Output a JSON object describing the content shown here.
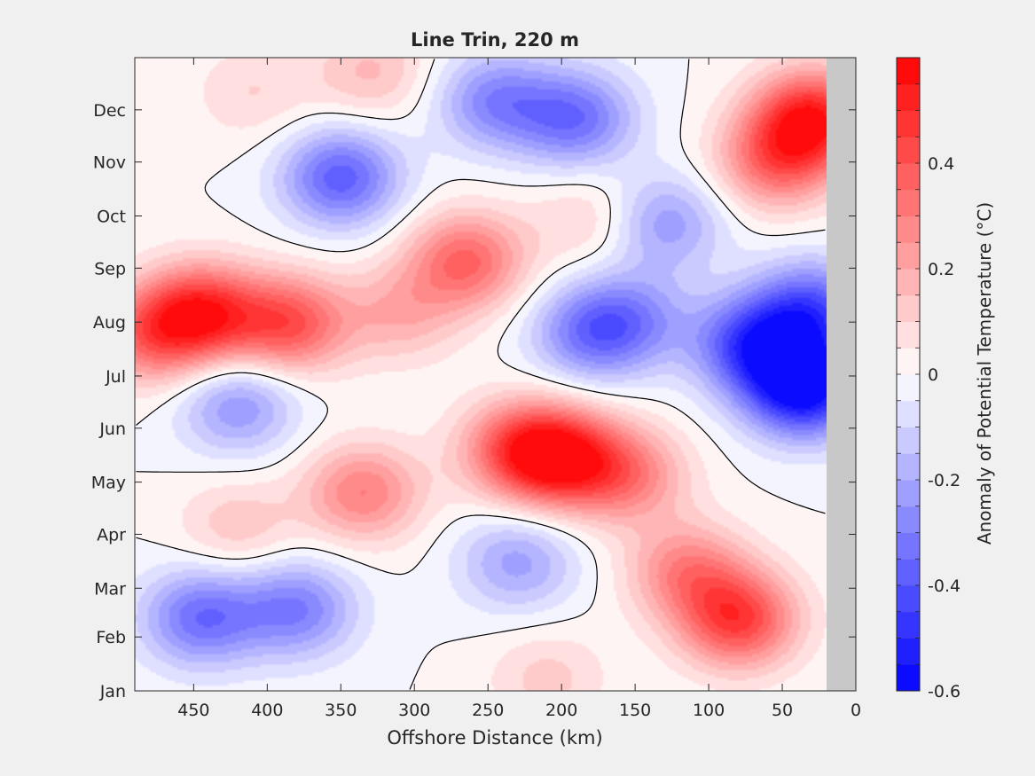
{
  "chart_data": {
    "type": "heatmap",
    "title": "Line Trin, 220 m",
    "xlabel": "Offshore Distance (km)",
    "ylabel": "",
    "colorbar_label": "Anomaly of Potential Temperature (°C)",
    "x_reversed": true,
    "xlim": [
      0,
      490
    ],
    "x_ticks": [
      450,
      400,
      350,
      300,
      250,
      200,
      150,
      100,
      50,
      0
    ],
    "y_ticks": [
      "Jan",
      "Feb",
      "Mar",
      "Apr",
      "May",
      "Jun",
      "Jul",
      "Aug",
      "Sep",
      "Oct",
      "Nov",
      "Dec"
    ],
    "y_tick_days": [
      1,
      32,
      60,
      91,
      121,
      152,
      182,
      213,
      244,
      274,
      305,
      335
    ],
    "ylim_days": [
      1,
      365
    ],
    "data_x_range": [
      20,
      490
    ],
    "no_data_color": "#c8c8c8",
    "clim": [
      -0.6,
      0.6
    ],
    "level_step": 0.05,
    "colorbar_ticks": [
      -0.6,
      -0.4,
      -0.2,
      0,
      0.2,
      0.4
    ],
    "colormap": {
      "negative_end": "#0000ff",
      "zero": "#ffffff",
      "positive_end": "#ff0000"
    },
    "zero_contour": true,
    "features": [
      {
        "x": 445,
        "day": 218,
        "value": 0.48
      },
      {
        "x": 385,
        "day": 212,
        "value": 0.4
      },
      {
        "x": 480,
        "day": 205,
        "value": 0.3
      },
      {
        "x": 200,
        "day": 135,
        "value": 0.48
      },
      {
        "x": 230,
        "day": 140,
        "value": 0.34
      },
      {
        "x": 155,
        "day": 125,
        "value": 0.28
      },
      {
        "x": 80,
        "day": 42,
        "value": 0.45
      },
      {
        "x": 115,
        "day": 70,
        "value": 0.28
      },
      {
        "x": 30,
        "day": 330,
        "value": 0.52
      },
      {
        "x": 55,
        "day": 305,
        "value": 0.32
      },
      {
        "x": 265,
        "day": 248,
        "value": 0.36
      },
      {
        "x": 335,
        "day": 115,
        "value": 0.3
      },
      {
        "x": 420,
        "day": 95,
        "value": 0.14
      },
      {
        "x": 310,
        "day": 218,
        "value": 0.18
      },
      {
        "x": 180,
        "day": 272,
        "value": 0.12
      },
      {
        "x": 330,
        "day": 357,
        "value": 0.16
      },
      {
        "x": 410,
        "day": 345,
        "value": 0.1
      },
      {
        "x": 210,
        "day": 8,
        "value": 0.12
      },
      {
        "x": 35,
        "day": 175,
        "value": -0.6
      },
      {
        "x": 70,
        "day": 200,
        "value": -0.42
      },
      {
        "x": 30,
        "day": 220,
        "value": -0.38
      },
      {
        "x": 180,
        "day": 207,
        "value": -0.3
      },
      {
        "x": 190,
        "day": 330,
        "value": -0.33
      },
      {
        "x": 245,
        "day": 340,
        "value": -0.28
      },
      {
        "x": 350,
        "day": 296,
        "value": -0.38
      },
      {
        "x": 445,
        "day": 43,
        "value": -0.34
      },
      {
        "x": 380,
        "day": 48,
        "value": -0.3
      },
      {
        "x": 230,
        "day": 75,
        "value": -0.22
      },
      {
        "x": 420,
        "day": 165,
        "value": -0.25
      },
      {
        "x": 130,
        "day": 270,
        "value": -0.24
      },
      {
        "x": 150,
        "day": 215,
        "value": -0.2
      }
    ]
  }
}
